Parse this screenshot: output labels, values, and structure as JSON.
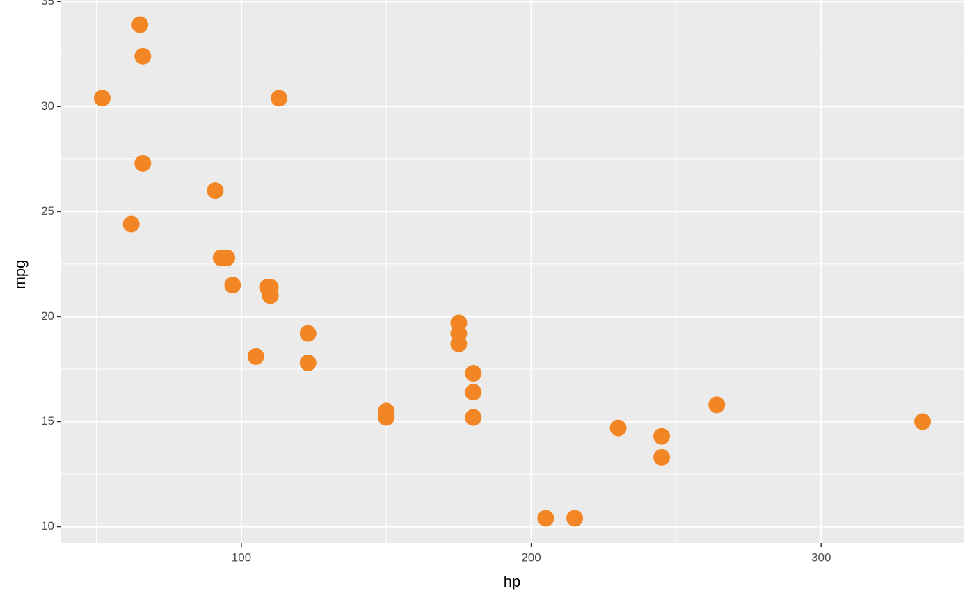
{
  "chart_data": {
    "type": "scatter",
    "x_label": "hp",
    "y_label": "mpg",
    "color": "#f28524",
    "series": [
      {
        "x": [
          110,
          110,
          93,
          110,
          175,
          105,
          245,
          62,
          95,
          123,
          123,
          180,
          180,
          180,
          205,
          215,
          230,
          66,
          52,
          65,
          97,
          150,
          150,
          245,
          175,
          66,
          91,
          113,
          264,
          175,
          335,
          109
        ],
        "values": [
          21.0,
          21.0,
          22.8,
          21.4,
          18.7,
          18.1,
          14.3,
          24.4,
          22.8,
          19.2,
          17.8,
          16.4,
          17.3,
          15.2,
          10.4,
          10.4,
          14.7,
          32.4,
          30.4,
          33.9,
          21.5,
          15.5,
          15.2,
          13.3,
          19.2,
          27.3,
          26.0,
          30.4,
          15.8,
          19.7,
          15.0,
          21.4
        ]
      }
    ],
    "xlim": [
      37.85,
      349.15
    ],
    "xticks": [
      100,
      200,
      300
    ],
    "xminor": [
      50,
      150,
      250
    ],
    "ylim": [
      9.225,
      35.075
    ],
    "yticks": [
      10,
      15,
      20,
      25,
      30,
      35
    ],
    "yminor": [
      12.5,
      17.5,
      22.5,
      27.5,
      32.5
    ],
    "grid": true
  }
}
